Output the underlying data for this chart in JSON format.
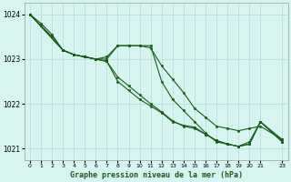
{
  "title": "Graphe pression niveau de la mer (hPa)",
  "bg_color": "#d8f4f0",
  "grid_color": "#b0ddd8",
  "line_color": "#1a5c1a",
  "xlim": [
    -0.5,
    23.5
  ],
  "ylim": [
    1020.75,
    1024.25
  ],
  "yticks": [
    1021,
    1022,
    1023,
    1024
  ],
  "x_ticks": [
    0,
    1,
    2,
    3,
    4,
    5,
    6,
    7,
    8,
    9,
    10,
    11,
    12,
    13,
    14,
    15,
    16,
    17,
    18,
    19,
    20,
    21,
    23
  ],
  "series": [
    {
      "x": [
        0,
        1,
        2,
        3,
        4,
        5,
        6,
        7,
        8,
        9,
        10,
        11,
        12,
        13,
        14,
        15,
        16,
        17,
        18,
        19,
        20,
        21,
        23
      ],
      "y": [
        1024.0,
        1023.8,
        1023.55,
        1023.2,
        1023.1,
        1023.05,
        1023.0,
        1023.05,
        1023.3,
        1023.3,
        1023.3,
        1023.25,
        1022.85,
        1022.55,
        1022.25,
        1021.9,
        1021.7,
        1021.5,
        1021.45,
        1021.4,
        1021.45,
        1021.5,
        1021.2
      ]
    },
    {
      "x": [
        0,
        1,
        2,
        3,
        4,
        5,
        6,
        7,
        8,
        9,
        10,
        11,
        12,
        13,
        14,
        15,
        16,
        17,
        18,
        19,
        20,
        21,
        23
      ],
      "y": [
        1024.0,
        1023.75,
        1023.5,
        1023.2,
        1023.1,
        1023.05,
        1023.0,
        1023.0,
        1023.3,
        1023.3,
        1023.3,
        1023.3,
        1022.5,
        1022.1,
        1021.85,
        1021.6,
        1021.35,
        1021.15,
        1021.1,
        1021.05,
        1021.15,
        1021.6,
        1021.2
      ]
    },
    {
      "x": [
        0,
        3,
        4,
        5,
        6,
        7,
        8,
        9,
        10,
        11,
        12,
        13,
        14,
        15,
        16,
        17,
        18,
        19,
        20,
        21,
        23
      ],
      "y": [
        1024.0,
        1023.2,
        1023.1,
        1023.05,
        1023.0,
        1022.95,
        1022.6,
        1022.4,
        1022.2,
        1022.0,
        1021.82,
        1021.62,
        1021.5,
        1021.45,
        1021.32,
        1021.18,
        1021.1,
        1021.05,
        1021.1,
        1021.6,
        1021.15
      ]
    },
    {
      "x": [
        0,
        3,
        4,
        5,
        6,
        7,
        8,
        9,
        10,
        11,
        12,
        13,
        14,
        15,
        16,
        17,
        18,
        19,
        20,
        21,
        23
      ],
      "y": [
        1024.0,
        1023.2,
        1023.1,
        1023.05,
        1023.0,
        1022.95,
        1022.5,
        1022.3,
        1022.1,
        1021.95,
        1021.8,
        1021.6,
        1021.52,
        1021.48,
        1021.32,
        1021.18,
        1021.1,
        1021.05,
        1021.1,
        1021.6,
        1021.15
      ]
    }
  ]
}
